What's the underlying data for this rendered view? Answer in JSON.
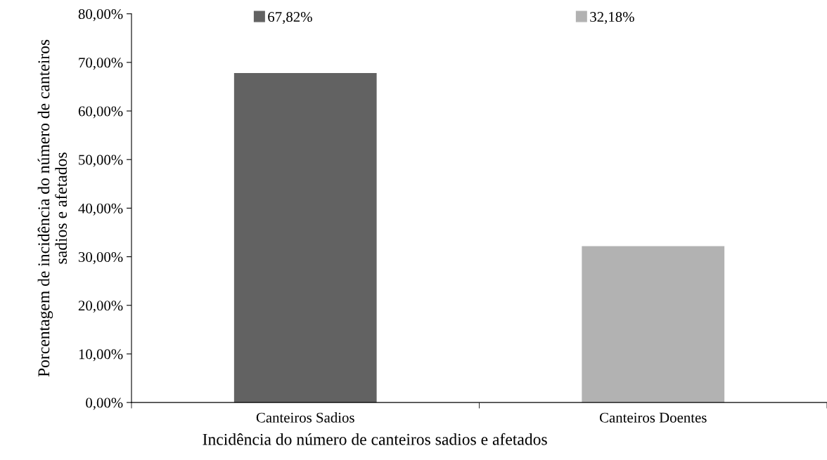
{
  "chart_data": {
    "type": "bar",
    "stacked": true,
    "xlabel": "Incidência do número de canteiros sadios e afetados",
    "ylabel": "Porcentagem de incidência do número de canteiros\nsadios e afetados",
    "categories": [
      "Canteiros Sadios",
      "Canteiros Doentes"
    ],
    "series": [
      {
        "name": "67,82%",
        "color": "#626262",
        "values": [
          67.82,
          null
        ]
      },
      {
        "name": "32,18%",
        "color": "#b2b2b2",
        "values": [
          null,
          32.18
        ]
      }
    ],
    "ylim": [
      0,
      80
    ],
    "yticks": [
      {
        "value": 0,
        "label": "0,00%"
      },
      {
        "value": 10,
        "label": "10,00%"
      },
      {
        "value": 20,
        "label": "20,00%"
      },
      {
        "value": 30,
        "label": "30,00%"
      },
      {
        "value": 40,
        "label": "40,00%"
      },
      {
        "value": 50,
        "label": "50,00%"
      },
      {
        "value": 60,
        "label": "60,00%"
      },
      {
        "value": 70,
        "label": "70,00%"
      },
      {
        "value": 80,
        "label": "80,00%"
      }
    ],
    "grid": false,
    "legend": "top"
  }
}
